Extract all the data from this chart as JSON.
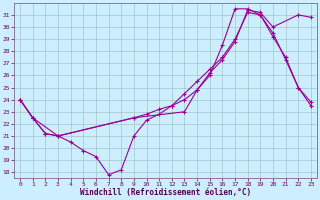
{
  "title": "",
  "xlabel": "Windchill (Refroidissement éolien,°C)",
  "bg_color": "#cceeff",
  "line_color": "#990099",
  "xlim": [
    -0.5,
    23.5
  ],
  "ylim": [
    17.5,
    32.0
  ],
  "xticks": [
    0,
    1,
    2,
    3,
    4,
    5,
    6,
    7,
    8,
    9,
    10,
    11,
    12,
    13,
    14,
    15,
    16,
    17,
    18,
    19,
    20,
    21,
    22,
    23
  ],
  "yticks": [
    18,
    19,
    20,
    21,
    22,
    23,
    24,
    25,
    26,
    27,
    28,
    29,
    30,
    31
  ],
  "line1_x": [
    0,
    1,
    2,
    3,
    4,
    5,
    6,
    7,
    8,
    9,
    10,
    11,
    12,
    13,
    14,
    15,
    16,
    17,
    18,
    19,
    20,
    21,
    22,
    23
  ],
  "line1_y": [
    24.0,
    22.5,
    21.2,
    21.0,
    20.5,
    19.8,
    19.3,
    17.8,
    18.2,
    21.0,
    22.3,
    22.8,
    23.5,
    24.5,
    25.5,
    26.5,
    27.5,
    29.0,
    31.2,
    31.0,
    29.5,
    27.3,
    25.0,
    23.5
  ],
  "line2_x": [
    0,
    1,
    2,
    3,
    9,
    10,
    11,
    12,
    13,
    14,
    15,
    16,
    17,
    18,
    19,
    20,
    22,
    23
  ],
  "line2_y": [
    24.0,
    22.5,
    21.2,
    21.0,
    22.5,
    22.8,
    23.2,
    23.5,
    24.0,
    24.8,
    26.2,
    27.3,
    28.8,
    31.4,
    31.2,
    30.0,
    31.0,
    30.8
  ],
  "line3_x": [
    0,
    1,
    3,
    9,
    13,
    14,
    15,
    16,
    17,
    18,
    19,
    20,
    21,
    22,
    23
  ],
  "line3_y": [
    24.0,
    22.5,
    21.0,
    22.5,
    23.0,
    24.8,
    26.0,
    28.5,
    31.5,
    31.5,
    31.0,
    29.2,
    27.5,
    25.0,
    23.8
  ]
}
